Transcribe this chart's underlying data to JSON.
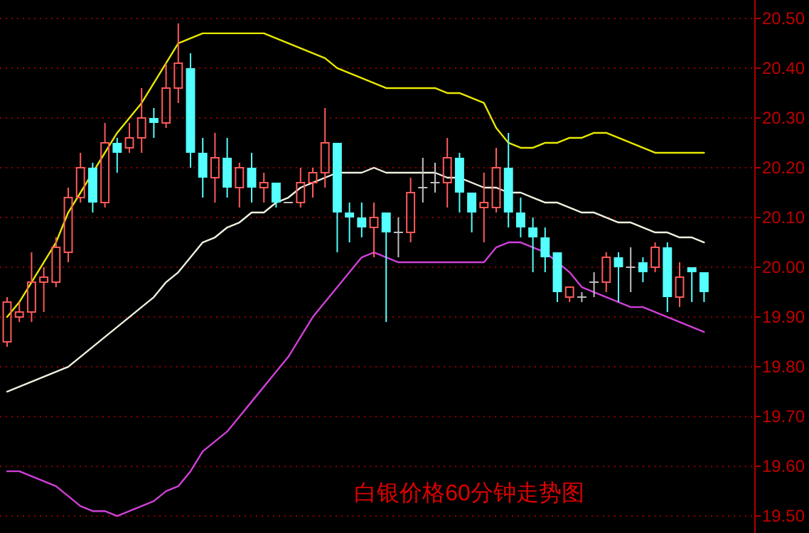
{
  "chart_data": {
    "type": "candlestick",
    "title": "白银价格60分钟走势图",
    "categories": [
      null,
      null,
      null,
      null,
      null,
      null,
      null,
      null,
      null,
      null,
      null,
      null,
      null,
      null,
      null,
      null,
      null,
      null,
      null,
      null,
      null,
      null,
      null,
      null,
      null,
      null,
      null,
      null,
      null,
      null,
      null,
      null,
      null,
      null,
      null,
      null,
      null,
      null,
      null,
      null,
      null,
      null,
      null,
      null,
      null,
      null,
      null,
      null,
      null,
      null,
      null,
      null,
      null,
      null,
      null,
      null,
      null,
      null
    ],
    "ohlc": [
      [
        19.85,
        19.94,
        19.84,
        19.93
      ],
      [
        19.9,
        19.93,
        19.89,
        19.91
      ],
      [
        19.91,
        20.03,
        19.89,
        19.97
      ],
      [
        19.97,
        20.0,
        19.91,
        19.98
      ],
      [
        19.97,
        20.06,
        19.96,
        20.04
      ],
      [
        20.03,
        20.16,
        20.01,
        20.14
      ],
      [
        20.14,
        20.23,
        20.13,
        20.2
      ],
      [
        20.2,
        20.21,
        20.11,
        20.13
      ],
      [
        20.13,
        20.29,
        20.12,
        20.25
      ],
      [
        20.25,
        20.26,
        20.19,
        20.23
      ],
      [
        20.24,
        20.29,
        20.23,
        20.26
      ],
      [
        20.26,
        20.36,
        20.23,
        20.3
      ],
      [
        20.3,
        20.32,
        20.26,
        20.29
      ],
      [
        20.29,
        20.41,
        20.28,
        20.36
      ],
      [
        20.36,
        20.49,
        20.33,
        20.41
      ],
      [
        20.4,
        20.43,
        20.2,
        20.23
      ],
      [
        20.23,
        20.26,
        20.14,
        20.18
      ],
      [
        20.18,
        20.27,
        20.13,
        20.22
      ],
      [
        20.22,
        20.26,
        20.14,
        20.16
      ],
      [
        20.16,
        20.21,
        20.12,
        20.2
      ],
      [
        20.2,
        20.23,
        20.13,
        20.16
      ],
      [
        20.16,
        20.19,
        20.13,
        20.17
      ],
      [
        20.17,
        20.17,
        20.12,
        20.13
      ],
      [
        20.13,
        20.13,
        20.13,
        20.13
      ],
      [
        20.13,
        20.2,
        20.12,
        20.17
      ],
      [
        20.17,
        20.2,
        20.14,
        20.19
      ],
      [
        20.19,
        20.32,
        20.16,
        20.25
      ],
      [
        20.25,
        20.25,
        20.03,
        20.11
      ],
      [
        20.11,
        20.13,
        20.05,
        20.1
      ],
      [
        20.1,
        20.13,
        20.06,
        20.08
      ],
      [
        20.08,
        20.13,
        20.02,
        20.1
      ],
      [
        20.11,
        20.11,
        19.89,
        20.07
      ],
      [
        20.07,
        20.1,
        20.02,
        20.07
      ],
      [
        20.07,
        20.18,
        20.05,
        20.15
      ],
      [
        20.16,
        20.22,
        20.13,
        20.16
      ],
      [
        20.17,
        20.21,
        20.15,
        20.17
      ],
      [
        20.17,
        20.26,
        20.12,
        20.22
      ],
      [
        20.22,
        20.23,
        20.11,
        20.15
      ],
      [
        20.15,
        20.15,
        20.07,
        20.11
      ],
      [
        20.12,
        20.19,
        20.05,
        20.13
      ],
      [
        20.12,
        20.24,
        20.11,
        20.2
      ],
      [
        20.2,
        20.27,
        20.08,
        20.11
      ],
      [
        20.11,
        20.14,
        20.06,
        20.08
      ],
      [
        20.08,
        20.1,
        19.99,
        20.06
      ],
      [
        20.06,
        20.08,
        19.99,
        20.02
      ],
      [
        20.03,
        20.03,
        19.93,
        19.95
      ],
      [
        19.94,
        19.96,
        19.93,
        19.96
      ],
      [
        19.94,
        19.95,
        19.93,
        19.94
      ],
      [
        19.97,
        19.99,
        19.94,
        19.97
      ],
      [
        19.97,
        20.03,
        19.95,
        20.02
      ],
      [
        20.02,
        20.03,
        19.93,
        20.0
      ],
      [
        20.0,
        20.04,
        19.95,
        20.0
      ],
      [
        20.01,
        20.02,
        19.97,
        19.99
      ],
      [
        20.0,
        20.05,
        19.99,
        20.04
      ],
      [
        20.04,
        20.05,
        19.91,
        19.94
      ],
      [
        19.94,
        20.01,
        19.92,
        19.98
      ],
      [
        20.0,
        20.0,
        19.93,
        19.99
      ],
      [
        19.99,
        19.99,
        19.93,
        19.95
      ]
    ],
    "colors": [
      "#ff5a5a",
      "#ff5a5a",
      "#ff5a5a",
      "#ff5a5a",
      "#ff5a5a",
      "#ff5a5a",
      "#ff5a5a",
      "#54ffff",
      "#ff5a5a",
      "#54ffff",
      "#ff5a5a",
      "#ff5a5a",
      "#54ffff",
      "#ff5a5a",
      "#ff5a5a",
      "#54ffff",
      "#54ffff",
      "#ff5a5a",
      "#54ffff",
      "#ff5a5a",
      "#54ffff",
      "#ff5a5a",
      "#54ffff",
      "#c0c0c0",
      "#ff5a5a",
      "#ff5a5a",
      "#ff5a5a",
      "#54ffff",
      "#54ffff",
      "#54ffff",
      "#ff5a5a",
      "#54ffff",
      "#c0c0c0",
      "#ff5a5a",
      "#c0c0c0",
      "#c0c0c0",
      "#ff5a5a",
      "#54ffff",
      "#54ffff",
      "#ff5a5a",
      "#ff5a5a",
      "#54ffff",
      "#54ffff",
      "#54ffff",
      "#54ffff",
      "#54ffff",
      "#ff5a5a",
      "#c0c0c0",
      "#c0c0c0",
      "#ff5a5a",
      "#54ffff",
      "#c0c0c0",
      "#54ffff",
      "#ff5a5a",
      "#54ffff",
      "#ff5a5a",
      "#54ffff",
      "#54ffff"
    ],
    "series": [
      {
        "type": "line",
        "color": "#e8e800",
        "values": [
          19.9,
          19.93,
          19.97,
          20.01,
          20.05,
          20.11,
          20.15,
          20.19,
          20.23,
          20.27,
          20.3,
          20.33,
          20.37,
          20.41,
          20.45,
          20.46,
          20.47,
          20.47,
          20.47,
          20.47,
          20.47,
          20.47,
          20.46,
          20.45,
          20.44,
          20.43,
          20.42,
          20.4,
          20.39,
          20.38,
          20.37,
          20.36,
          20.36,
          20.36,
          20.36,
          20.36,
          20.35,
          20.35,
          20.34,
          20.33,
          20.28,
          20.25,
          20.24,
          20.24,
          20.25,
          20.25,
          20.26,
          20.26,
          20.27,
          20.27,
          20.26,
          20.25,
          20.24,
          20.23,
          20.23,
          20.23,
          20.23,
          20.23
        ]
      },
      {
        "type": "line",
        "color": "#f0f0e0",
        "values": [
          19.75,
          19.76,
          19.77,
          19.78,
          19.79,
          19.8,
          19.82,
          19.84,
          19.86,
          19.88,
          19.9,
          19.92,
          19.94,
          19.97,
          19.99,
          20.02,
          20.05,
          20.06,
          20.08,
          20.09,
          20.11,
          20.11,
          20.13,
          20.14,
          20.16,
          20.17,
          20.18,
          20.19,
          20.19,
          20.19,
          20.2,
          20.19,
          20.19,
          20.19,
          20.19,
          20.19,
          20.18,
          20.18,
          20.17,
          20.16,
          20.16,
          20.15,
          20.15,
          20.14,
          20.13,
          20.13,
          20.12,
          20.11,
          20.11,
          20.1,
          20.09,
          20.09,
          20.08,
          20.07,
          20.07,
          20.06,
          20.06,
          20.05
        ]
      },
      {
        "type": "line",
        "color": "#d040d8",
        "values": [
          19.59,
          19.59,
          19.58,
          19.57,
          19.56,
          19.54,
          19.52,
          19.51,
          19.51,
          19.5,
          19.51,
          19.52,
          19.53,
          19.55,
          19.56,
          19.59,
          19.63,
          19.65,
          19.67,
          19.7,
          19.73,
          19.76,
          19.79,
          19.82,
          19.86,
          19.9,
          19.93,
          19.96,
          19.99,
          20.02,
          20.03,
          20.02,
          20.01,
          20.01,
          20.01,
          20.01,
          20.01,
          20.01,
          20.01,
          20.01,
          20.04,
          20.05,
          20.05,
          20.04,
          20.03,
          20.01,
          19.99,
          19.96,
          19.95,
          19.94,
          19.93,
          19.92,
          19.92,
          19.91,
          19.9,
          19.89,
          19.88,
          19.87
        ]
      }
    ],
    "ylim": [
      19.466,
      20.537
    ],
    "yticks": [
      {
        "value": 19.5,
        "label": "19.50"
      },
      {
        "value": 19.6,
        "label": "19.60"
      },
      {
        "value": 19.7,
        "label": "19.70"
      },
      {
        "value": 19.8,
        "label": "19.80"
      },
      {
        "value": 19.9,
        "label": "19.90"
      },
      {
        "value": 20.0,
        "label": "20.00"
      },
      {
        "value": 20.1,
        "label": "20.10"
      },
      {
        "value": 20.2,
        "label": "20.20"
      },
      {
        "value": 20.3,
        "label": "20.30"
      },
      {
        "value": 20.4,
        "label": "20.40"
      },
      {
        "value": 20.5,
        "label": "20.50"
      }
    ],
    "grid": "y"
  }
}
